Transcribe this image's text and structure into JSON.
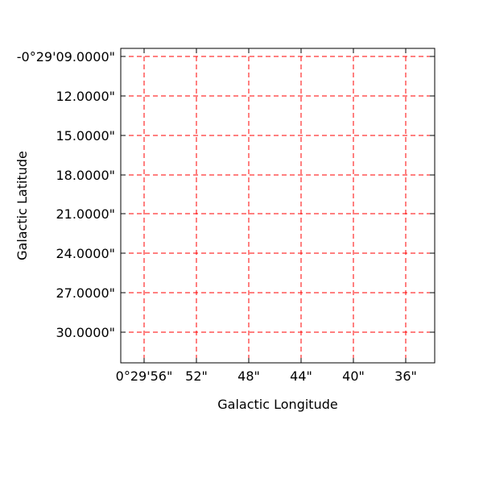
{
  "chart_data": {
    "type": "grid",
    "projection": "galactic",
    "title": "",
    "xlabel": "Galactic Longitude",
    "ylabel": "Galactic Latitude",
    "x_ticks": [
      "0°29'56\"",
      "52\"",
      "48\"",
      "44\"",
      "40\"",
      "36\""
    ],
    "y_ticks": [
      "-0°29'09.0000\"",
      "12.0000\"",
      "15.0000\"",
      "18.0000\"",
      "21.0000\"",
      "24.0000\"",
      "27.0000\"",
      "30.0000\""
    ],
    "grid": true,
    "grid_style": "dashed",
    "grid_color": "#ff0000",
    "axes_color": "#000000"
  }
}
